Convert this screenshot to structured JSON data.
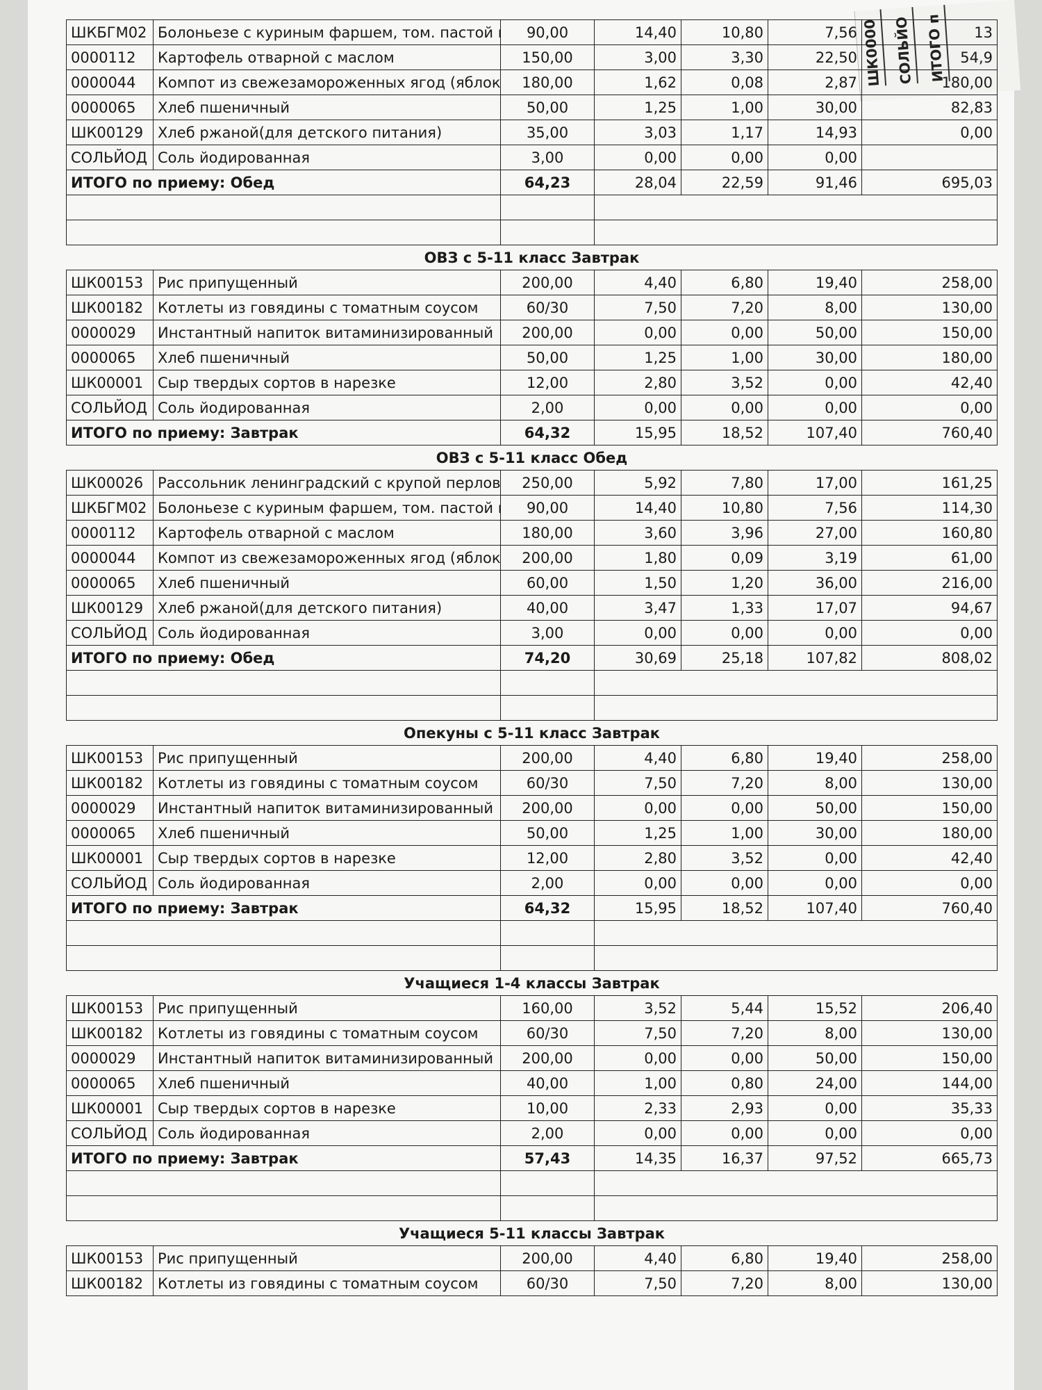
{
  "side_sheet": {
    "lines": [
      "ШК0000",
      "СОЛЬЙО",
      "ИТОГО п"
    ]
  },
  "sections": [
    {
      "title": null,
      "items": [
        [
          "ШКБГМ02",
          "Болоньезе с куриным фаршем, том. пастой и овощами"
        ],
        [
          "0000112",
          "Картофель отварной с маслом"
        ],
        [
          "0000044",
          "Компот из свежезамороженных ягод (яблоки/черноплодна"
        ],
        [
          "0000065",
          "Хлеб пшеничный"
        ],
        [
          "ШК00129",
          "Хлеб ржаной(для детского питания)"
        ],
        [
          "СОЛЬЙОД",
          "Соль йодированная"
        ]
      ],
      "numbers": [
        [
          "90,00",
          "14,40",
          "10,80",
          "7,56",
          "13"
        ],
        [
          "150,00",
          "3,00",
          "3,30",
          "22,50",
          "54,9"
        ],
        [
          "180,00",
          "1,62",
          "0,08",
          "2,87",
          "180,00"
        ],
        [
          "50,00",
          "1,25",
          "1,00",
          "30,00",
          "82,83"
        ],
        [
          "35,00",
          "3,03",
          "1,17",
          "14,93",
          "0,00"
        ],
        [
          "3,00",
          "0,00",
          "0,00",
          "0,00",
          null
        ]
      ],
      "total_label": "ИТОГО по приему: Обед",
      "totals": [
        "64,23",
        "28,04",
        "22,59",
        "91,46",
        "695,03"
      ]
    },
    {
      "title": "ОВЗ с 5-11 класс Завтрак",
      "items": [
        [
          "ШК00153",
          "Рис припущенный"
        ],
        [
          "ШК00182",
          "Котлеты из говядины с томатным соусом"
        ],
        [
          "0000029",
          "Инстантный напиток витаминизированный"
        ],
        [
          "0000065",
          "Хлеб пшеничный"
        ],
        [
          "ШК00001",
          "Сыр твердых сортов в нарезке"
        ],
        [
          "СОЛЬЙОД",
          "Соль йодированная"
        ]
      ],
      "numbers": [
        [
          "200,00",
          "4,40",
          "6,80",
          "19,40",
          "258,00"
        ],
        [
          "60/30",
          "7,50",
          "7,20",
          "8,00",
          "130,00"
        ],
        [
          "200,00",
          "0,00",
          "0,00",
          "50,00",
          "150,00"
        ],
        [
          "50,00",
          "1,25",
          "1,00",
          "30,00",
          "180,00"
        ],
        [
          "12,00",
          "2,80",
          "3,52",
          "0,00",
          "42,40"
        ],
        [
          "2,00",
          "0,00",
          "0,00",
          "0,00",
          "0,00"
        ]
      ],
      "total_label": "ИТОГО по приему: Завтрак",
      "totals": [
        "64,32",
        "15,95",
        "18,52",
        "107,40",
        "760,40"
      ]
    },
    {
      "title": "ОВЗ с 5-11 класс Обед",
      "items": [
        [
          "ШК00026",
          "Рассольник ленинградский с крупой перловой"
        ],
        [
          "ШКБГМ02",
          "Болоньезе с куриным фаршем, том. пастой и овощами"
        ],
        [
          "0000112",
          "Картофель отварной с маслом"
        ],
        [
          "0000044",
          "Компот из свежезамороженных ягод (яблоки/черноплодна"
        ],
        [
          "0000065",
          "Хлеб пшеничный"
        ],
        [
          "ШК00129",
          "Хлеб ржаной(для детского питания)"
        ],
        [
          "СОЛЬЙОД",
          "Соль йодированная"
        ]
      ],
      "numbers": [
        [
          "250,00",
          "5,92",
          "7,80",
          "17,00",
          "161,25"
        ],
        [
          "90,00",
          "14,40",
          "10,80",
          "7,56",
          "114,30"
        ],
        [
          "180,00",
          "3,60",
          "3,96",
          "27,00",
          "160,80"
        ],
        [
          "200,00",
          "1,80",
          "0,09",
          "3,19",
          "61,00"
        ],
        [
          "60,00",
          "1,50",
          "1,20",
          "36,00",
          "216,00"
        ],
        [
          "40,00",
          "3,47",
          "1,33",
          "17,07",
          "94,67"
        ],
        [
          "3,00",
          "0,00",
          "0,00",
          "0,00",
          "0,00"
        ]
      ],
      "total_label": "ИТОГО по приему: Обед",
      "totals": [
        "74,20",
        "30,69",
        "25,18",
        "107,82",
        "808,02"
      ]
    },
    {
      "title": "Опекуны с 5-11 класс Завтрак",
      "items": [
        [
          "ШК00153",
          "Рис припущенный"
        ],
        [
          "ШК00182",
          "Котлеты из говядины с томатным соусом"
        ],
        [
          "0000029",
          "Инстантный напиток витаминизированный"
        ],
        [
          "0000065",
          "Хлеб пшеничный"
        ],
        [
          "ШК00001",
          "Сыр твердых сортов в нарезке"
        ],
        [
          "СОЛЬЙОД",
          "Соль йодированная"
        ]
      ],
      "numbers": [
        [
          "200,00",
          "4,40",
          "6,80",
          "19,40",
          "258,00"
        ],
        [
          "60/30",
          "7,50",
          "7,20",
          "8,00",
          "130,00"
        ],
        [
          "200,00",
          "0,00",
          "0,00",
          "50,00",
          "150,00"
        ],
        [
          "50,00",
          "1,25",
          "1,00",
          "30,00",
          "180,00"
        ],
        [
          "12,00",
          "2,80",
          "3,52",
          "0,00",
          "42,40"
        ],
        [
          "2,00",
          "0,00",
          "0,00",
          "0,00",
          "0,00"
        ]
      ],
      "total_label": "ИТОГО по приему: Завтрак",
      "totals": [
        "64,32",
        "15,95",
        "18,52",
        "107,40",
        "760,40"
      ]
    },
    {
      "title": "Учащиеся 1-4 классы Завтрак",
      "items": [
        [
          "ШК00153",
          "Рис припущенный"
        ],
        [
          "ШК00182",
          "Котлеты из говядины с томатным соусом"
        ],
        [
          "0000029",
          "Инстантный напиток витаминизированный"
        ],
        [
          "0000065",
          "Хлеб пшеничный"
        ],
        [
          "ШК00001",
          "Сыр твердых сортов в нарезке"
        ],
        [
          "СОЛЬЙОД",
          "Соль йодированная"
        ]
      ],
      "numbers": [
        [
          "160,00",
          "3,52",
          "5,44",
          "15,52",
          "206,40"
        ],
        [
          "60/30",
          "7,50",
          "7,20",
          "8,00",
          "130,00"
        ],
        [
          "200,00",
          "0,00",
          "0,00",
          "50,00",
          "150,00"
        ],
        [
          "40,00",
          "1,00",
          "0,80",
          "24,00",
          "144,00"
        ],
        [
          "10,00",
          "2,33",
          "2,93",
          "0,00",
          "35,33"
        ],
        [
          "2,00",
          "0,00",
          "0,00",
          "0,00",
          "0,00"
        ]
      ],
      "total_label": "ИТОГО по приему: Завтрак",
      "totals": [
        "57,43",
        "14,35",
        "16,37",
        "97,52",
        "665,73"
      ]
    },
    {
      "title": "Учащиеся 5-11 классы Завтрак",
      "items": [
        [
          "ШК00153",
          "Рис припущенный"
        ],
        [
          "ШК00182",
          "Котлеты из говядины с томатным соусом"
        ]
      ],
      "numbers": [
        [
          "200,00",
          "4,40",
          "6,80",
          "19,40",
          "258,00"
        ],
        [
          "60/30",
          "7,50",
          "7,20",
          "8,00",
          "130,00"
        ]
      ],
      "total_label": null,
      "totals": null
    }
  ]
}
